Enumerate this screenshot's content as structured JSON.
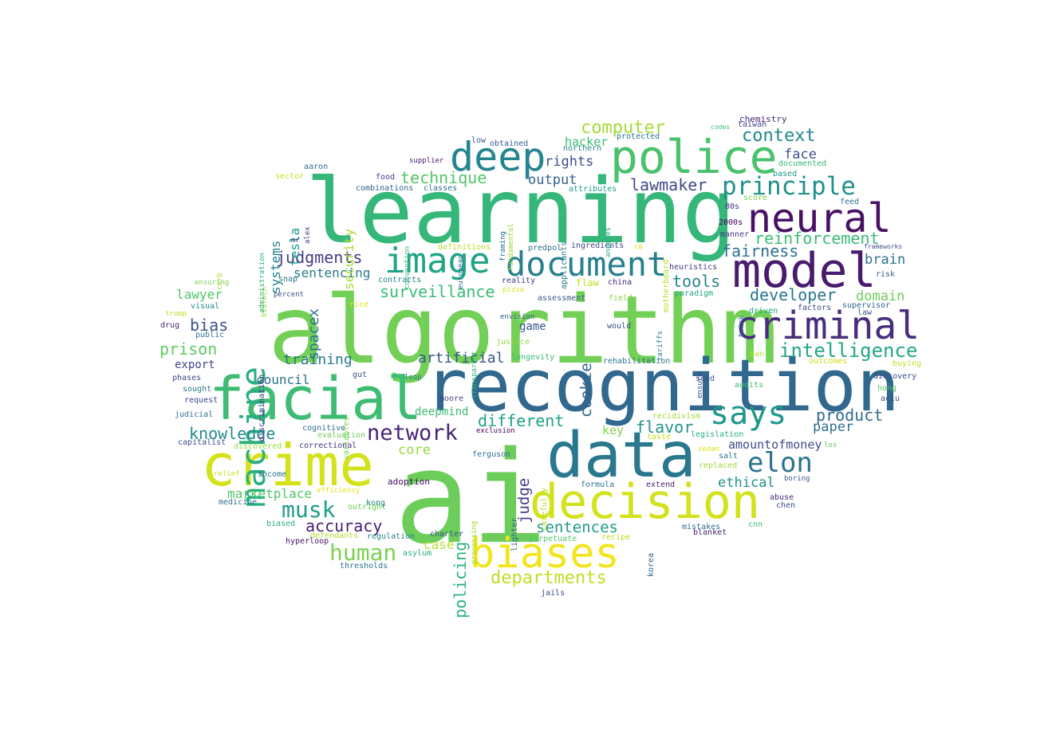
{
  "words": [
    {
      "text": "ai",
      "color": "#6ccd5a",
      "vertical": false
    },
    {
      "text": "algorithm",
      "color": "#73d056",
      "vertical": false
    },
    {
      "text": "learning",
      "color": "#35b779",
      "vertical": false
    },
    {
      "text": "recognition",
      "color": "#31688e",
      "vertical": false
    },
    {
      "text": "data",
      "color": "#2a788e",
      "vertical": false
    },
    {
      "text": "crime",
      "color": "#d2e21b",
      "vertical": false
    },
    {
      "text": "facial",
      "color": "#3ebc73",
      "vertical": false
    },
    {
      "text": "decision",
      "color": "#d2e21b",
      "vertical": false
    },
    {
      "text": "police",
      "color": "#4ac16d",
      "vertical": false
    },
    {
      "text": "model",
      "color": "#481b6d",
      "vertical": false
    },
    {
      "text": "biases",
      "color": "#f2e51d",
      "vertical": false
    },
    {
      "text": "deep",
      "color": "#25858e",
      "vertical": false
    },
    {
      "text": "image",
      "color": "#20a486",
      "vertical": false
    },
    {
      "text": "document",
      "color": "#277f8e",
      "vertical": false
    },
    {
      "text": "neural",
      "color": "#471164",
      "vertical": false
    },
    {
      "text": "criminal",
      "color": "#472d7b",
      "vertical": false
    },
    {
      "text": "machine",
      "color": "#29af7f",
      "vertical": true
    },
    {
      "text": "says",
      "color": "#1f988b",
      "vertical": false
    },
    {
      "text": "elon",
      "color": "#2c728e",
      "vertical": false
    },
    {
      "text": "principle",
      "color": "#21918c",
      "vertical": false
    },
    {
      "text": "network",
      "color": "#482475",
      "vertical": false
    },
    {
      "text": "musk",
      "color": "#1f9e89",
      "vertical": false
    },
    {
      "text": "human",
      "color": "#7ad151",
      "vertical": false
    },
    {
      "text": "intelligence",
      "color": "#22a884",
      "vertical": false
    },
    {
      "text": "computer",
      "color": "#a5db36",
      "vertical": false
    },
    {
      "text": "context",
      "color": "#24868e",
      "vertical": false
    },
    {
      "text": "reinforcement",
      "color": "#3bbb75",
      "vertical": false
    },
    {
      "text": "departments",
      "color": "#bddf26",
      "vertical": false
    },
    {
      "text": "surveillance",
      "color": "#3bbb75",
      "vertical": false
    },
    {
      "text": "technique",
      "color": "#56c667",
      "vertical": false
    },
    {
      "text": "judgments",
      "color": "#443a83",
      "vertical": false
    },
    {
      "text": "developer",
      "color": "#2a768e",
      "vertical": false
    },
    {
      "text": "fairness",
      "color": "#2d708e",
      "vertical": false
    },
    {
      "text": "lawmaker",
      "color": "#3e4989",
      "vertical": false
    },
    {
      "text": "flavor",
      "color": "#21918c",
      "vertical": false
    },
    {
      "text": "different",
      "color": "#1fa187",
      "vertical": false
    },
    {
      "text": "knowledge",
      "color": "#23898e",
      "vertical": false
    },
    {
      "text": "product",
      "color": "#2f6c8e",
      "vertical": false
    },
    {
      "text": "accuracy",
      "color": "#481f70",
      "vertical": false
    },
    {
      "text": "sentences",
      "color": "#1e9b8a",
      "vertical": false
    },
    {
      "text": "policing",
      "color": "#2eb37c",
      "vertical": true
    },
    {
      "text": "artificial",
      "color": "#39568c",
      "vertical": false
    },
    {
      "text": "tools",
      "color": "#25848e",
      "vertical": false
    },
    {
      "text": "prison",
      "color": "#5ec962",
      "vertical": false
    },
    {
      "text": "bias",
      "color": "#3b528b",
      "vertical": false
    },
    {
      "text": "training",
      "color": "#2a788e",
      "vertical": false
    },
    {
      "text": "marketplace",
      "color": "#52c569",
      "vertical": false
    },
    {
      "text": "sentencing",
      "color": "#297b8e",
      "vertical": false
    },
    {
      "text": "judge",
      "color": "#443983",
      "vertical": true
    },
    {
      "text": "cookie",
      "color": "#31668e",
      "vertical": true
    },
    {
      "text": "spacex",
      "color": "#2b758e",
      "vertical": true
    },
    {
      "text": "rights",
      "color": "#3b528b",
      "vertical": false
    },
    {
      "text": "output",
      "color": "#33638d",
      "vertical": false
    },
    {
      "text": "case",
      "color": "#b5de2b",
      "vertical": false
    },
    {
      "text": "core",
      "color": "#9bd93c",
      "vertical": false
    },
    {
      "text": "face",
      "color": "#3b528b",
      "vertical": false
    },
    {
      "text": "domain",
      "color": "#6ccd5a",
      "vertical": false
    },
    {
      "text": "brain",
      "color": "#2c728e",
      "vertical": false
    },
    {
      "text": "paper",
      "color": "#2d708e",
      "vertical": false
    },
    {
      "text": "ethical",
      "color": "#20928c",
      "vertical": false
    },
    {
      "text": "council",
      "color": "#2c718e",
      "vertical": false
    },
    {
      "text": "lawyer",
      "color": "#54c568",
      "vertical": false
    },
    {
      "text": "hacker",
      "color": "#3dbc74",
      "vertical": false
    },
    {
      "text": "deepmind",
      "color": "#3dbc74",
      "vertical": false
    },
    {
      "text": "systems",
      "color": "#26828e",
      "vertical": true
    },
    {
      "text": "security",
      "color": "#a8db34",
      "vertical": true
    },
    {
      "text": "tesla",
      "color": "#1f998a",
      "vertical": true
    },
    {
      "text": "amountofmoney",
      "color": "#3e4c8a",
      "vertical": false
    },
    {
      "text": "key",
      "color": "#84d44b",
      "vertical": false
    },
    {
      "text": "game",
      "color": "#39568c",
      "vertical": false
    },
    {
      "text": "export",
      "color": "#404588",
      "vertical": false
    },
    {
      "text": "chemistry",
      "color": "#482878",
      "vertical": false
    },
    {
      "text": "taiwan",
      "color": "#414487",
      "vertical": false
    },
    {
      "text": "codes",
      "color": "#40bd72",
      "vertical": false
    },
    {
      "text": "documented",
      "color": "#37b878",
      "vertical": false
    },
    {
      "text": "based",
      "color": "#1f958b",
      "vertical": false
    },
    {
      "text": "feed",
      "color": "#2e6f8e",
      "vertical": false
    },
    {
      "text": "score",
      "color": "#7ad151",
      "vertical": false
    },
    {
      "text": "80s",
      "color": "#463480",
      "vertical": false
    },
    {
      "text": "2000s",
      "color": "#440154",
      "vertical": false
    },
    {
      "text": "manner",
      "color": "#443a83",
      "vertical": false
    },
    {
      "text": "frameworks",
      "color": "#3f4788",
      "vertical": false
    },
    {
      "text": "heuristics",
      "color": "#453882",
      "vertical": false
    },
    {
      "text": "risk",
      "color": "#33638d",
      "vertical": false
    },
    {
      "text": "paradigm",
      "color": "#22a785",
      "vertical": false
    },
    {
      "text": "factors",
      "color": "#3e4a89",
      "vertical": false
    },
    {
      "text": "supervisor",
      "color": "#33638d",
      "vertical": false
    },
    {
      "text": "law",
      "color": "#3b528b",
      "vertical": false
    },
    {
      "text": "driven",
      "color": "#20a486",
      "vertical": false
    },
    {
      "text": "buick",
      "color": "#2c728e",
      "vertical": true
    },
    {
      "text": "tariffs",
      "color": "#2a788e",
      "vertical": true
    },
    {
      "text": "ensure",
      "color": "#404588",
      "vertical": true
    },
    {
      "text": "seed",
      "color": "#3b528b",
      "vertical": false
    },
    {
      "text": "ban",
      "color": "#b8de29",
      "vertical": false
    },
    {
      "text": "outcomes",
      "color": "#d0e11c",
      "vertical": false
    },
    {
      "text": "buying",
      "color": "#c2df23",
      "vertical": false
    },
    {
      "text": "discovery",
      "color": "#3d4d8a",
      "vertical": false
    },
    {
      "text": "hong",
      "color": "#56c667",
      "vertical": false
    },
    {
      "text": "aclu",
      "color": "#3e4c8a",
      "vertical": false
    },
    {
      "text": "audits",
      "color": "#40bd72",
      "vertical": false
    },
    {
      "text": "replaced",
      "color": "#9fda3a",
      "vertical": false
    },
    {
      "text": "legislation",
      "color": "#26ad81",
      "vertical": false
    },
    {
      "text": "salt",
      "color": "#2a788e",
      "vertical": false
    },
    {
      "text": "los",
      "color": "#5ec962",
      "vertical": false
    },
    {
      "text": "sedan",
      "color": "#d8e219",
      "vertical": false
    },
    {
      "text": "boring",
      "color": "#38598c",
      "vertical": false
    },
    {
      "text": "abuse",
      "color": "#472c7a",
      "vertical": false
    },
    {
      "text": "chen",
      "color": "#3d4d8a",
      "vertical": false
    },
    {
      "text": "cnn",
      "color": "#3dbc74",
      "vertical": false
    },
    {
      "text": "mistakes",
      "color": "#2e6e8e",
      "vertical": false
    },
    {
      "text": "blanket",
      "color": "#482173",
      "vertical": false
    },
    {
      "text": "korea",
      "color": "#33638d",
      "vertical": true
    },
    {
      "text": "recipe",
      "color": "#b8de29",
      "vertical": false
    },
    {
      "text": "perpetuate",
      "color": "#52c569",
      "vertical": false
    },
    {
      "text": "formula",
      "color": "#2c728e",
      "vertical": false
    },
    {
      "text": "extend",
      "color": "#482173",
      "vertical": false
    },
    {
      "text": "recidivism",
      "color": "#a2da37",
      "vertical": false
    },
    {
      "text": "taste",
      "color": "#cae11f",
      "vertical": false
    },
    {
      "text": "rehabilitation",
      "color": "#2b748e",
      "vertical": false
    },
    {
      "text": "would",
      "color": "#3b528b",
      "vertical": false
    },
    {
      "text": "field",
      "color": "#84d44b",
      "vertical": false
    },
    {
      "text": "china",
      "color": "#472d7b",
      "vertical": false
    },
    {
      "text": "flaw",
      "color": "#c0df25",
      "vertical": false
    },
    {
      "text": "assessment",
      "color": "#39558c",
      "vertical": false
    },
    {
      "text": "envision",
      "color": "#33638d",
      "vertical": false
    },
    {
      "text": "justice",
      "color": "#8fd744",
      "vertical": false
    },
    {
      "text": "longevity",
      "color": "#35b779",
      "vertical": false
    },
    {
      "text": "ingredients",
      "color": "#3f4788",
      "vertical": false
    },
    {
      "text": "ca",
      "color": "#e2e418",
      "vertical": false
    },
    {
      "text": "protected",
      "color": "#2c728e",
      "vertical": false
    },
    {
      "text": "northern",
      "color": "#23898e",
      "vertical": false
    },
    {
      "text": "attributes",
      "color": "#1f9e89",
      "vertical": false
    },
    {
      "text": "angeles",
      "color": "#27ad81",
      "vertical": true
    },
    {
      "text": "motherboard",
      "color": "#b5de2b",
      "vertical": true
    },
    {
      "text": "applicants",
      "color": "#2b758e",
      "vertical": true
    },
    {
      "text": "fundamental",
      "color": "#9bd93c",
      "vertical": true
    },
    {
      "text": "framing",
      "color": "#2d708e",
      "vertical": true
    },
    {
      "text": "predpol",
      "color": "#2e6e8e",
      "vertical": false
    },
    {
      "text": "low",
      "color": "#38598c",
      "vertical": false
    },
    {
      "text": "obtained",
      "color": "#355f8d",
      "vertical": false
    },
    {
      "text": "supplier",
      "color": "#481668",
      "vertical": false
    },
    {
      "text": "food",
      "color": "#433e85",
      "vertical": false
    },
    {
      "text": "combinations",
      "color": "#31668e",
      "vertical": false
    },
    {
      "text": "classes",
      "color": "#2c718e",
      "vertical": false
    },
    {
      "text": "convention",
      "color": "#3aba76",
      "vertical": true
    },
    {
      "text": "european",
      "color": "#2f6c8e",
      "vertical": true
    },
    {
      "text": "definitions",
      "color": "#b5de2b",
      "vertical": false
    },
    {
      "text": "reality",
      "color": "#443983",
      "vertical": false
    },
    {
      "text": "contracts",
      "color": "#26828e",
      "vertical": false
    },
    {
      "text": "pizza",
      "color": "#d5e21a",
      "vertical": false
    },
    {
      "text": "rice",
      "color": "#dde318",
      "vertical": false
    },
    {
      "text": "transparent",
      "color": "#31b57b",
      "vertical": true
    },
    {
      "text": "gut",
      "color": "#3b528b",
      "vertical": false
    },
    {
      "text": "loop",
      "color": "#287c8e",
      "vertical": false
    },
    {
      "text": "variables",
      "color": "#77d153",
      "vertical": true
    },
    {
      "text": "moore",
      "color": "#414487",
      "vertical": false
    },
    {
      "text": "evaluation",
      "color": "#6ece58",
      "vertical": false
    },
    {
      "text": "cognitive",
      "color": "#2c728e",
      "vertical": false
    },
    {
      "text": "exclusion",
      "color": "#440154",
      "vertical": false
    },
    {
      "text": "ferguson",
      "color": "#2c718e",
      "vertical": false
    },
    {
      "text": "correctional",
      "color": "#46327e",
      "vertical": false
    },
    {
      "text": "carefully",
      "color": "#b5de2b",
      "vertical": true
    },
    {
      "text": "lighter",
      "color": "#33638d",
      "vertical": true
    },
    {
      "text": "processing",
      "color": "#a2da37",
      "vertical": true
    },
    {
      "text": "efficiency",
      "color": "#e5e419",
      "vertical": false
    },
    {
      "text": "adoption",
      "color": "#46085c",
      "vertical": false
    },
    {
      "text": "outright",
      "color": "#6ece58",
      "vertical": false
    },
    {
      "text": "kong",
      "color": "#26828e",
      "vertical": false
    },
    {
      "text": "regulation",
      "color": "#26828e",
      "vertical": false
    },
    {
      "text": "charter",
      "color": "#38598c",
      "vertical": false
    },
    {
      "text": "defendants",
      "color": "#b0dd2f",
      "vertical": false
    },
    {
      "text": "asylum",
      "color": "#29af7f",
      "vertical": false
    },
    {
      "text": "thresholds",
      "color": "#2d708e",
      "vertical": false
    },
    {
      "text": "jails",
      "color": "#3e4a89",
      "vertical": false
    },
    {
      "text": "hyperloop",
      "color": "#471164",
      "vertical": false
    },
    {
      "text": "biased",
      "color": "#25ab82",
      "vertical": false
    },
    {
      "text": "medicine",
      "color": "#2d708e",
      "vertical": false
    },
    {
      "text": "relief",
      "color": "#c8e020",
      "vertical": false
    },
    {
      "text": "income",
      "color": "#2c738e",
      "vertical": false
    },
    {
      "text": "capitalist",
      "color": "#3e4c8a",
      "vertical": false
    },
    {
      "text": "discovered",
      "color": "#9bd93c",
      "vertical": false
    },
    {
      "text": "judicial",
      "color": "#2c718e",
      "vertical": false
    },
    {
      "text": "request",
      "color": "#3f4788",
      "vertical": false
    },
    {
      "text": "sought",
      "color": "#2a788e",
      "vertical": false
    },
    {
      "text": "phases",
      "color": "#3e4989",
      "vertical": false
    },
    {
      "text": "drug",
      "color": "#482878",
      "vertical": false
    },
    {
      "text": "public",
      "color": "#2a768e",
      "vertical": false
    },
    {
      "text": "trump",
      "color": "#bddf26",
      "vertical": false
    },
    {
      "text": "visual",
      "color": "#238a8d",
      "vertical": false
    },
    {
      "text": "ensuring",
      "color": "#7ad151",
      "vertical": false
    },
    {
      "text": "percent",
      "color": "#3e4c8a",
      "vertical": false
    },
    {
      "text": "snap",
      "color": "#2a788e",
      "vertical": false
    },
    {
      "text": "curb",
      "color": "#addc30",
      "vertical": true
    },
    {
      "text": "discrimination",
      "color": "#453882",
      "vertical": true
    },
    {
      "text": "biotech",
      "color": "#a5db36",
      "vertical": true
    },
    {
      "text": "administration",
      "color": "#2eb37c",
      "vertical": true
    },
    {
      "text": "mr",
      "color": "#424086",
      "vertical": false
    },
    {
      "text": "alex",
      "color": "#46327e",
      "vertical": true
    },
    {
      "text": "aaron",
      "color": "#2d708e",
      "vertical": false
    },
    {
      "text": "sector",
      "color": "#c5e021",
      "vertical": false
    }
  ]
}
